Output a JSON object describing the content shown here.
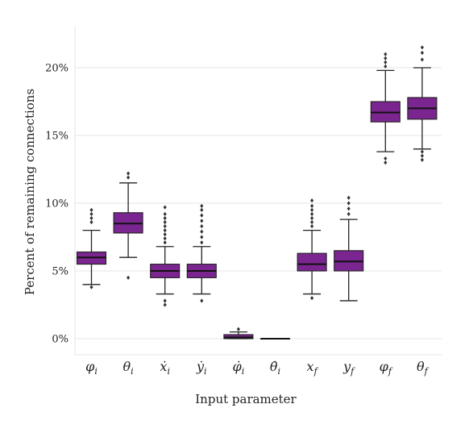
{
  "colors": {
    "box_fill": "#7b2590",
    "grid": "#e6e6e6",
    "whisker": "#222222",
    "median": "#111111"
  },
  "chart_data": {
    "type": "box",
    "xlabel": "Input parameter",
    "ylabel": "Percent of remaining connections",
    "ylim": [
      -1.2,
      23.2
    ],
    "yticks": [
      0,
      5,
      10,
      15,
      20
    ],
    "ytick_labels": [
      "0%",
      "5%",
      "10%",
      "15%",
      "20%"
    ],
    "grid": true,
    "categories": [
      "φᵢ",
      "θᵢ",
      "ẋᵢ",
      "ẏᵢ",
      "φ̇ᵢ",
      "θ̇ᵢ",
      "x_f",
      "y_f",
      "φ_f",
      "θ_f"
    ],
    "category_display": [
      {
        "base": "φ",
        "sub": "i"
      },
      {
        "base": "θ",
        "sub": "i"
      },
      {
        "base": "ẋ",
        "sub": "i"
      },
      {
        "base": "ẏ",
        "sub": "i"
      },
      {
        "base": "φ̇",
        "sub": "i"
      },
      {
        "base": "θ̇",
        "sub": "i"
      },
      {
        "base": "x",
        "sub": "f"
      },
      {
        "base": "y",
        "sub": "f"
      },
      {
        "base": "φ",
        "sub": "f"
      },
      {
        "base": "θ",
        "sub": "f"
      }
    ],
    "boxes": [
      {
        "whislo": 4.0,
        "q1": 5.5,
        "med": 6.0,
        "q3": 6.4,
        "whishi": 8.0,
        "fliers": [
          3.8,
          8.6,
          8.9,
          9.2,
          9.5
        ]
      },
      {
        "whislo": 6.0,
        "q1": 7.8,
        "med": 8.5,
        "q3": 9.3,
        "whishi": 11.5,
        "fliers": [
          4.5,
          11.9,
          12.2
        ]
      },
      {
        "whislo": 3.3,
        "q1": 4.5,
        "med": 5.0,
        "q3": 5.5,
        "whishi": 6.8,
        "fliers": [
          2.5,
          2.8,
          7.1,
          7.4,
          7.7,
          8.0,
          8.3,
          8.6,
          8.9,
          9.2,
          9.7
        ]
      },
      {
        "whislo": 3.3,
        "q1": 4.5,
        "med": 5.0,
        "q3": 5.5,
        "whishi": 6.8,
        "fliers": [
          2.8,
          7.1,
          7.5,
          7.9,
          8.3,
          8.7,
          9.1,
          9.5,
          9.8
        ]
      },
      {
        "whislo": 0.0,
        "q1": 0.0,
        "med": 0.1,
        "q3": 0.3,
        "whishi": 0.5,
        "fliers": [
          0.7
        ]
      },
      {
        "whislo": 0.0,
        "q1": 0.0,
        "med": 0.0,
        "q3": 0.0,
        "whishi": 0.0,
        "fliers": []
      },
      {
        "whislo": 3.3,
        "q1": 5.0,
        "med": 5.5,
        "q3": 6.3,
        "whishi": 8.0,
        "fliers": [
          3.0,
          8.3,
          8.6,
          8.9,
          9.2,
          9.5,
          9.8,
          10.2
        ]
      },
      {
        "whislo": 2.8,
        "q1": 5.0,
        "med": 5.7,
        "q3": 6.5,
        "whishi": 8.8,
        "fliers": [
          9.2,
          9.6,
          10.0,
          10.4
        ]
      },
      {
        "whislo": 13.8,
        "q1": 16.0,
        "med": 16.7,
        "q3": 17.5,
        "whishi": 19.8,
        "fliers": [
          13.0,
          13.3,
          20.1,
          20.4,
          20.7,
          21.0
        ]
      },
      {
        "whislo": 14.0,
        "q1": 16.2,
        "med": 17.0,
        "q3": 17.8,
        "whishi": 20.0,
        "fliers": [
          13.2,
          13.5,
          13.8,
          20.6,
          21.1,
          21.5
        ]
      }
    ]
  }
}
